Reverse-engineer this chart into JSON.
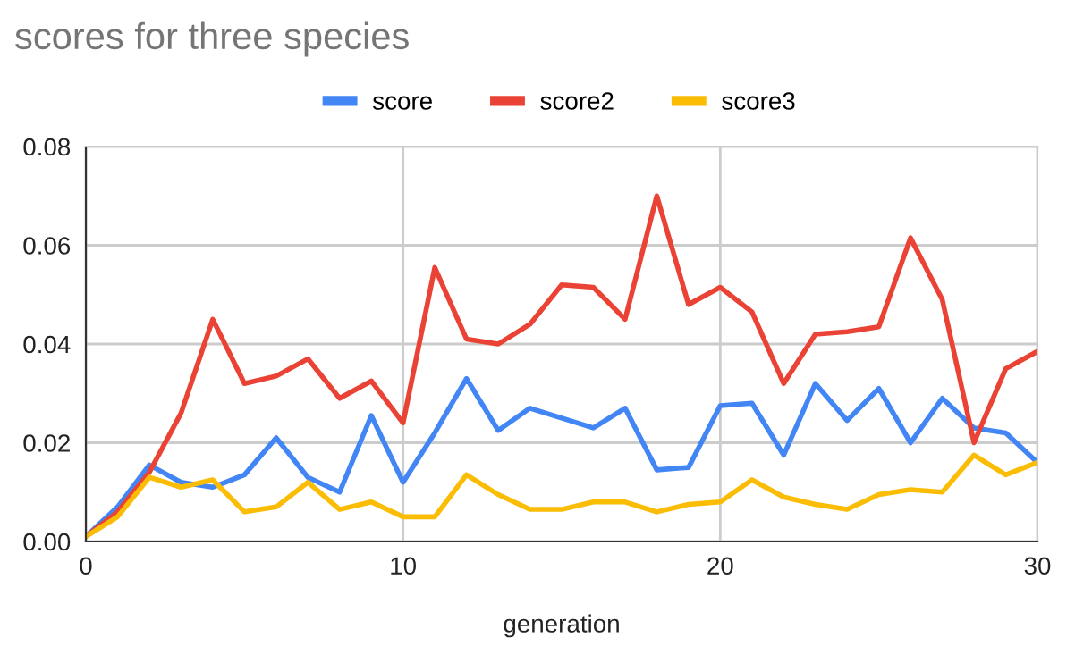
{
  "chart_data": {
    "type": "line",
    "title": "scores for three species",
    "xlabel": "generation",
    "x": [
      0,
      1,
      2,
      3,
      4,
      5,
      6,
      7,
      8,
      9,
      10,
      11,
      12,
      13,
      14,
      15,
      16,
      17,
      18,
      19,
      20,
      21,
      22,
      23,
      24,
      25,
      26,
      27,
      28,
      29,
      30
    ],
    "series": [
      {
        "name": "score",
        "color": "#4285f4",
        "values": [
          0.001,
          0.007,
          0.0155,
          0.012,
          0.011,
          0.0135,
          0.021,
          0.013,
          0.01,
          0.0255,
          0.012,
          0.022,
          0.033,
          0.0225,
          0.027,
          0.025,
          0.023,
          0.027,
          0.0145,
          0.015,
          0.0275,
          0.028,
          0.0175,
          0.032,
          0.0245,
          0.031,
          0.02,
          0.029,
          0.023,
          0.022,
          0.016
        ]
      },
      {
        "name": "score2",
        "color": "#ea4335",
        "values": [
          0.001,
          0.006,
          0.014,
          0.026,
          0.045,
          0.032,
          0.0335,
          0.037,
          0.029,
          0.0325,
          0.024,
          0.0555,
          0.041,
          0.04,
          0.044,
          0.052,
          0.0515,
          0.045,
          0.07,
          0.048,
          0.0515,
          0.0465,
          0.032,
          0.042,
          0.0425,
          0.0435,
          0.0615,
          0.049,
          0.02,
          0.035,
          0.0385
        ]
      },
      {
        "name": "score3",
        "color": "#fbbc04",
        "values": [
          0.001,
          0.005,
          0.013,
          0.011,
          0.0125,
          0.006,
          0.007,
          0.012,
          0.0065,
          0.008,
          0.005,
          0.005,
          0.0135,
          0.0095,
          0.0065,
          0.0065,
          0.008,
          0.008,
          0.006,
          0.0075,
          0.008,
          0.0125,
          0.009,
          0.0075,
          0.0065,
          0.0095,
          0.0105,
          0.01,
          0.0175,
          0.0135,
          0.016
        ]
      }
    ],
    "xlim": [
      0,
      30
    ],
    "xticks": [
      0,
      10,
      20,
      30
    ],
    "ylim": [
      0,
      0.08
    ],
    "yticks": [
      {
        "value": 0,
        "label": "0.00"
      },
      {
        "value": 0.02,
        "label": "0.02"
      },
      {
        "value": 0.04,
        "label": "0.04"
      },
      {
        "value": 0.06,
        "label": "0.06"
      },
      {
        "value": 0.08,
        "label": "0.08"
      }
    ],
    "grid": true,
    "legend": "top",
    "marker": "none",
    "line_style": "solid"
  }
}
